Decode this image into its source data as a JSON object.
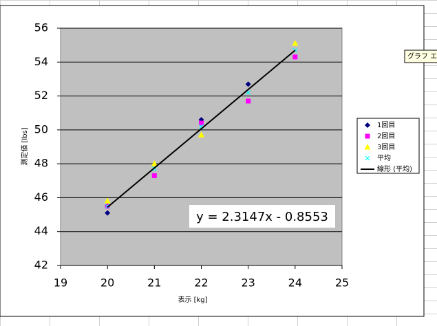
{
  "chart_data": {
    "type": "scatter",
    "x_label": "表示 [kg]",
    "y_label": "測定値 [lbs]",
    "xlim": [
      19,
      25
    ],
    "xticks": [
      19,
      20,
      21,
      22,
      23,
      24,
      25
    ],
    "ylim": [
      42,
      56
    ],
    "yticks": [
      42,
      44,
      46,
      48,
      50,
      52,
      54,
      56
    ],
    "grid": true,
    "legend": "right",
    "series": [
      {
        "name": "1回目",
        "color": "#000080",
        "marker": "diamond",
        "x": [
          20,
          22,
          23
        ],
        "values": [
          45.1,
          50.6,
          52.7
        ]
      },
      {
        "name": "2回目",
        "color": "#ff00ff",
        "marker": "square",
        "x": [
          20,
          21,
          22,
          23,
          24
        ],
        "values": [
          45.5,
          47.3,
          50.4,
          51.7,
          54.3
        ]
      },
      {
        "name": "3回目",
        "color": "#ffff00",
        "marker": "triangle",
        "x": [
          20,
          21,
          22,
          24
        ],
        "values": [
          45.8,
          48.0,
          49.7,
          55.1
        ]
      },
      {
        "name": "平均",
        "color": "#00ffff",
        "marker": "cross",
        "x": [
          20,
          21,
          22,
          23,
          24
        ],
        "values": [
          45.5,
          47.7,
          50.2,
          52.2,
          54.7
        ]
      }
    ],
    "trendline": {
      "name": "線形 (平均)",
      "color": "#000000",
      "slope": 2.3147,
      "intercept": -0.8553,
      "x": [
        20,
        24
      ],
      "label": "y = 2.3147x - 0.8553"
    }
  },
  "tooltip": "グラフ エリ"
}
